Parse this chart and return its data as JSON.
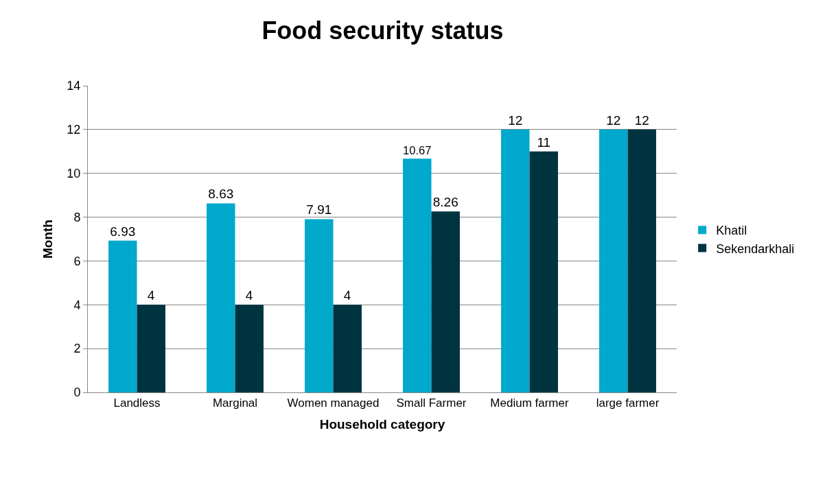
{
  "chart_data": {
    "type": "bar",
    "title": "Food security status",
    "xlabel": "Household category",
    "ylabel": "Month",
    "categories": [
      "Landless",
      "Marginal",
      "Women managed",
      "Small Farmer",
      "Medium farmer",
      "large farmer"
    ],
    "series": [
      {
        "name": "Khatil",
        "color": "#00a9cc",
        "values": [
          6.93,
          8.63,
          7.91,
          10.67,
          12,
          12
        ]
      },
      {
        "name": "Sekendarkhali",
        "color": "#003340",
        "values": [
          4,
          4,
          4,
          8.26,
          11,
          12
        ]
      }
    ],
    "ylim": [
      0,
      14
    ],
    "yticks": [
      0,
      2,
      4,
      6,
      8,
      10,
      12,
      14
    ],
    "grid": "y",
    "legend": "right",
    "data_labels": true
  }
}
